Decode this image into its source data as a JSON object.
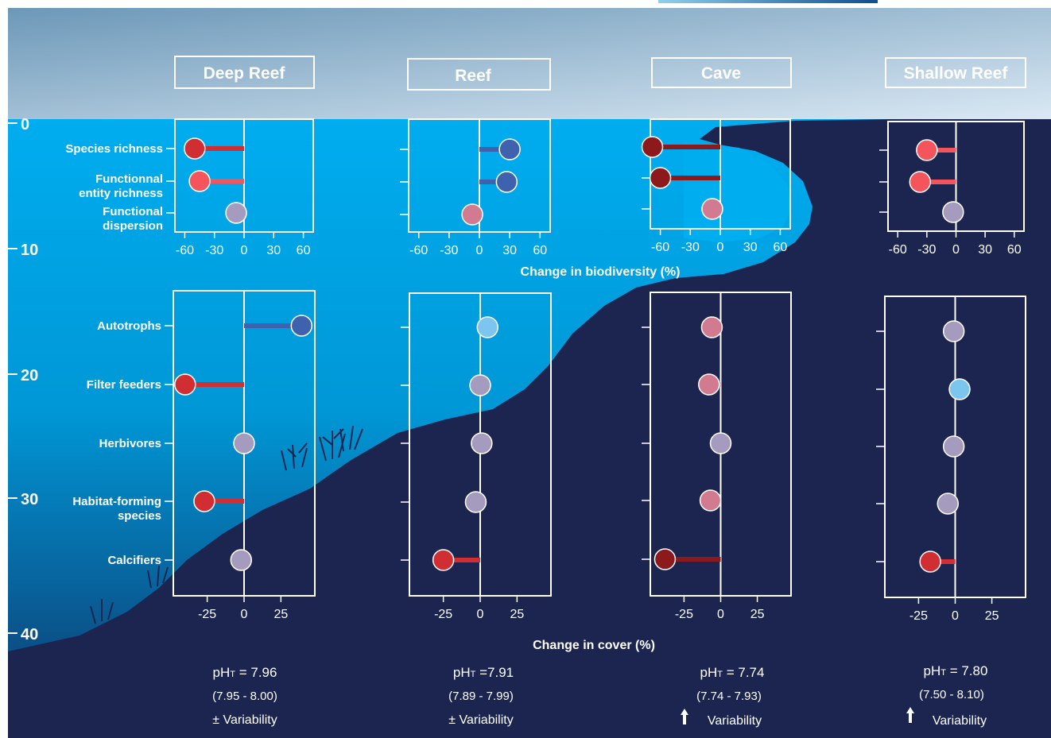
{
  "depth_axis": {
    "ticks": [
      "0",
      "10",
      "20",
      "30",
      "40"
    ]
  },
  "sites": [
    {
      "name": "Deep Reef",
      "ph_label": "pH",
      "ph_sub": "T",
      "ph_value": "= 7.96",
      "ph_range": "(7.95 - 8.00)",
      "variability_symbol": "±",
      "variability_arrow": false,
      "variability_text": "Variability"
    },
    {
      "name": "Reef",
      "ph_label": "pH",
      "ph_sub": "T",
      "ph_value": "=7.91",
      "ph_range": "(7.89 - 7.99)",
      "variability_symbol": "±",
      "variability_arrow": false,
      "variability_text": "Variability"
    },
    {
      "name": "Cave",
      "ph_label": "pH",
      "ph_sub": "T",
      "ph_value": "= 7.74",
      "ph_range": "(7.74 - 7.93)",
      "variability_symbol": "",
      "variability_arrow": true,
      "variability_text": "Variability"
    },
    {
      "name": "Shallow Reef",
      "ph_label": "pH",
      "ph_sub": "T",
      "ph_value": "= 7.80",
      "ph_range": "(7.50 - 8.10)",
      "variability_symbol": "",
      "variability_arrow": true,
      "variability_text": "Variability"
    }
  ],
  "colors": {
    "sky_top": "#6c98b8",
    "sky_bottom": "#dbe9f4",
    "water": "#00adef",
    "seafloor": "#1b2550",
    "panel_border": "#ffffff",
    "strong_decrease": "#8c1a1d",
    "decrease": "#d12e33",
    "mild_decrease": "#f4545c",
    "slight_decrease": "#d27a8f",
    "neutral": "#a59bbf",
    "slight_increase": "#7cc5ee",
    "increase": "#3f62ae"
  },
  "chart_data": [
    {
      "type": "dot-range",
      "xlabel": "Change in biodiversity (%)",
      "xlim": [
        -70,
        70
      ],
      "xticks": [
        -60,
        -30,
        0,
        30,
        60
      ],
      "xtick_labels": [
        "-60",
        "-30",
        "0",
        "30",
        "60"
      ],
      "categories": [
        "Species richness",
        "Functionnal entity richness",
        "Functional dispersion"
      ],
      "category_labels": [
        [
          "Species richness"
        ],
        [
          "Functionnal",
          "entity richness"
        ],
        [
          "Functional",
          "dispersion"
        ]
      ],
      "series": [
        {
          "name": "Deep Reef",
          "values": [
            -50,
            -45,
            -8
          ],
          "colors": [
            "#d12e33",
            "#f4545c",
            "#a59bbf"
          ]
        },
        {
          "name": "Reef",
          "values": [
            30,
            27,
            -7
          ],
          "colors": [
            "#3f62ae",
            "#3f62ae",
            "#d27a8f"
          ]
        },
        {
          "name": "Cave",
          "values": [
            -68,
            -60,
            -8
          ],
          "colors": [
            "#8c1a1d",
            "#8c1a1d",
            "#d27a8f"
          ]
        },
        {
          "name": "Shallow Reef",
          "values": [
            -30,
            -37,
            -3
          ],
          "colors": [
            "#f4545c",
            "#f4545c",
            "#a59bbf"
          ]
        }
      ]
    },
    {
      "type": "dot-range",
      "xlabel": "Change in cover (%)",
      "xlim": [
        -48,
        48
      ],
      "xticks": [
        -25,
        0,
        25
      ],
      "xtick_labels": [
        "-25",
        "0",
        "25"
      ],
      "categories": [
        "Autotrophs",
        "Filter feeders",
        "Herbivores",
        "Habitat-forming species",
        "Calcifiers"
      ],
      "category_labels": [
        [
          "Autotrophs"
        ],
        [
          "Filter feeders"
        ],
        [
          "Herbivores"
        ],
        [
          "Habitat-forming",
          "species"
        ],
        [
          "Calcifiers"
        ]
      ],
      "series": [
        {
          "name": "Deep Reef",
          "values": [
            39,
            -40,
            0,
            -27,
            -2
          ],
          "colors": [
            "#3f62ae",
            "#d12e33",
            "#a59bbf",
            "#d12e33",
            "#a59bbf"
          ]
        },
        {
          "name": "Reef",
          "values": [
            5,
            0,
            1,
            -3,
            -25
          ],
          "colors": [
            "#7cc5ee",
            "#a59bbf",
            "#a59bbf",
            "#a59bbf",
            "#d12e33"
          ]
        },
        {
          "name": "Cave",
          "values": [
            -6,
            -8,
            0,
            -7,
            -38
          ],
          "colors": [
            "#d27a8f",
            "#d27a8f",
            "#a59bbf",
            "#d27a8f",
            "#8c1a1d"
          ]
        },
        {
          "name": "Shallow Reef",
          "values": [
            -1,
            3,
            -1,
            -5,
            -17
          ],
          "colors": [
            "#a59bbf",
            "#7cc5ee",
            "#a59bbf",
            "#a59bbf",
            "#d12e33"
          ]
        }
      ]
    }
  ]
}
